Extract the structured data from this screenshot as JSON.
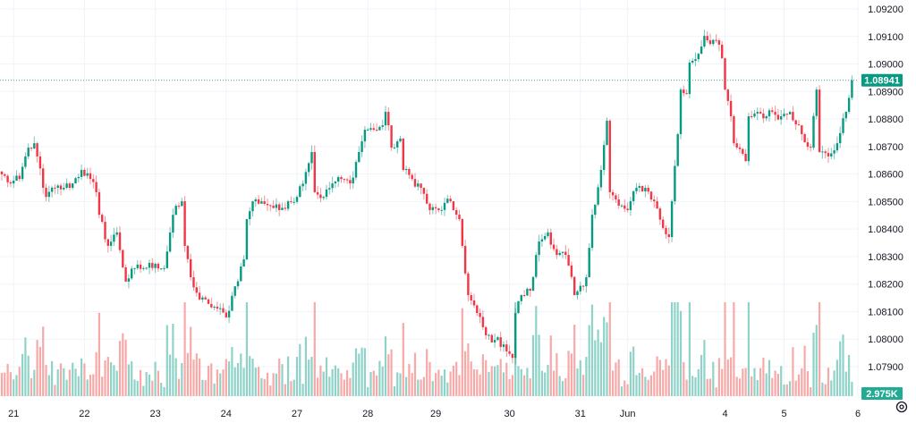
{
  "chart_data": {
    "type": "candlestick",
    "title": "",
    "candle_count": 289,
    "y_ticks": [
      "1.09200",
      "1.09100",
      "1.09000",
      "1.08900",
      "1.08800",
      "1.08700",
      "1.08600",
      "1.08500",
      "1.08400",
      "1.08300",
      "1.08200",
      "1.08100",
      "1.08000",
      "1.07900"
    ],
    "y_tick_values": [
      1.092,
      1.091,
      1.09,
      1.089,
      1.088,
      1.087,
      1.086,
      1.085,
      1.084,
      1.083,
      1.082,
      1.081,
      1.08,
      1.079
    ],
    "ylim": [
      1.079,
      1.092
    ],
    "x_ticks": [
      {
        "label": "21",
        "index": 4
      },
      {
        "label": "22",
        "index": 28
      },
      {
        "label": "23",
        "index": 52
      },
      {
        "label": "24",
        "index": 76
      },
      {
        "label": "27",
        "index": 100
      },
      {
        "label": "28",
        "index": 124
      },
      {
        "label": "29",
        "index": 147
      },
      {
        "label": "30",
        "index": 172
      },
      {
        "label": "31",
        "index": 196
      },
      {
        "label": "Jun",
        "index": 212
      },
      {
        "label": "4",
        "index": 245
      },
      {
        "label": "5",
        "index": 265
      },
      {
        "label": "6",
        "index": 290
      }
    ],
    "close_keypoints": [
      [
        0,
        1.08599
      ],
      [
        3,
        1.08566
      ],
      [
        6,
        1.08582
      ],
      [
        9,
        1.08696
      ],
      [
        11,
        1.08712
      ],
      [
        12,
        1.08664
      ],
      [
        14,
        1.0855
      ],
      [
        15,
        1.08517
      ],
      [
        18,
        1.0855
      ],
      [
        21,
        1.0855
      ],
      [
        24,
        1.08566
      ],
      [
        27,
        1.08615
      ],
      [
        30,
        1.08582
      ],
      [
        32,
        1.08534
      ],
      [
        33,
        1.08452
      ],
      [
        36,
        1.08339
      ],
      [
        39,
        1.08388
      ],
      [
        42,
        1.08209
      ],
      [
        45,
        1.08258
      ],
      [
        48,
        1.08258
      ],
      [
        52,
        1.08274
      ],
      [
        55,
        1.08258
      ],
      [
        58,
        1.08452
      ],
      [
        61,
        1.08501
      ],
      [
        62,
        1.08339
      ],
      [
        64,
        1.08225
      ],
      [
        67,
        1.08144
      ],
      [
        70,
        1.08128
      ],
      [
        73,
        1.08111
      ],
      [
        76,
        1.08079
      ],
      [
        79,
        1.08192
      ],
      [
        82,
        1.0829
      ],
      [
        83,
        1.08436
      ],
      [
        85,
        1.08501
      ],
      [
        88,
        1.08501
      ],
      [
        91,
        1.08485
      ],
      [
        94,
        1.08469
      ],
      [
        97,
        1.08501
      ],
      [
        100,
        1.08517
      ],
      [
        105,
        1.0868
      ],
      [
        106,
        1.08534
      ],
      [
        109,
        1.08517
      ],
      [
        112,
        1.08566
      ],
      [
        115,
        1.08582
      ],
      [
        118,
        1.08566
      ],
      [
        121,
        1.0868
      ],
      [
        123,
        1.08761
      ],
      [
        126,
        1.08761
      ],
      [
        129,
        1.08777
      ],
      [
        130,
        1.08826
      ],
      [
        132,
        1.08696
      ],
      [
        135,
        1.08729
      ],
      [
        136,
        1.08615
      ],
      [
        139,
        1.08582
      ],
      [
        142,
        1.0855
      ],
      [
        145,
        1.08469
      ],
      [
        148,
        1.08469
      ],
      [
        152,
        1.08501
      ],
      [
        153,
        1.08469
      ],
      [
        155,
        1.08436
      ],
      [
        156,
        1.08339
      ],
      [
        158,
        1.0816
      ],
      [
        161,
        1.08095
      ],
      [
        164,
        1.08014
      ],
      [
        167,
        1.07997
      ],
      [
        170,
        1.07981
      ],
      [
        173,
        1.07932
      ],
      [
        174,
        1.08095
      ],
      [
        176,
        1.0816
      ],
      [
        179,
        1.08176
      ],
      [
        182,
        1.08355
      ],
      [
        185,
        1.08388
      ],
      [
        188,
        1.08306
      ],
      [
        191,
        1.08306
      ],
      [
        194,
        1.0816
      ],
      [
        197,
        1.08192
      ],
      [
        198,
        1.08225
      ],
      [
        200,
        1.08452
      ],
      [
        203,
        1.08615
      ],
      [
        205,
        1.08794
      ],
      [
        206,
        1.08534
      ],
      [
        209,
        1.08485
      ],
      [
        212,
        1.08469
      ],
      [
        215,
        1.0855
      ],
      [
        218,
        1.0855
      ],
      [
        221,
        1.08501
      ],
      [
        224,
        1.08404
      ],
      [
        226,
        1.08371
      ],
      [
        227,
        1.08501
      ],
      [
        229,
        1.08745
      ],
      [
        230,
        1.08907
      ],
      [
        232,
        1.08891
      ],
      [
        233,
        1.09005
      ],
      [
        236,
        1.09037
      ],
      [
        238,
        1.09102
      ],
      [
        239,
        1.09086
      ],
      [
        242,
        1.09086
      ],
      [
        244,
        1.09021
      ],
      [
        245,
        1.08907
      ],
      [
        247,
        1.0881
      ],
      [
        248,
        1.08712
      ],
      [
        252,
        1.08647
      ],
      [
        253,
        1.0881
      ],
      [
        256,
        1.08826
      ],
      [
        259,
        1.0881
      ],
      [
        261,
        1.08826
      ],
      [
        264,
        1.0881
      ],
      [
        267,
        1.08826
      ],
      [
        270,
        1.08777
      ],
      [
        271,
        1.08745
      ],
      [
        274,
        1.08696
      ],
      [
        276,
        1.08907
      ],
      [
        277,
        1.0868
      ],
      [
        280,
        1.08664
      ],
      [
        283,
        1.08712
      ],
      [
        286,
        1.08826
      ],
      [
        288,
        1.08941
      ]
    ],
    "last_price": "1.08941",
    "last_volume": "2.975K",
    "colors": {
      "up": "#089981",
      "down": "#f23645",
      "vol_up": "#8fd3c8",
      "vol_down": "#f7a9a7",
      "grid": "#f0f3fa"
    }
  },
  "axis": {
    "settings_icon": "gear-icon"
  }
}
